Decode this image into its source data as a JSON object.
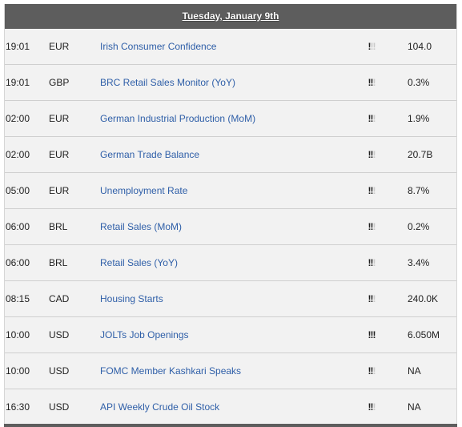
{
  "calendar": {
    "date_label": "Tuesday, January 9th",
    "events": [
      {
        "time": "19:01",
        "currency": "EUR",
        "event": "Irish Consumer Confidence",
        "importance": 1,
        "value": "104.0"
      },
      {
        "time": "19:01",
        "currency": "GBP",
        "event": "BRC Retail Sales Monitor (YoY)",
        "importance": 2,
        "value": "0.3%"
      },
      {
        "time": "02:00",
        "currency": "EUR",
        "event": "German Industrial Production (MoM)",
        "importance": 2,
        "value": "1.9%"
      },
      {
        "time": "02:00",
        "currency": "EUR",
        "event": "German Trade Balance",
        "importance": 2,
        "value": "20.7B"
      },
      {
        "time": "05:00",
        "currency": "EUR",
        "event": "Unemployment Rate",
        "importance": 2,
        "value": "8.7%"
      },
      {
        "time": "06:00",
        "currency": "BRL",
        "event": "Retail Sales (MoM)",
        "importance": 2,
        "value": "0.2%"
      },
      {
        "time": "06:00",
        "currency": "BRL",
        "event": "Retail Sales (YoY)",
        "importance": 2,
        "value": "3.4%"
      },
      {
        "time": "08:15",
        "currency": "CAD",
        "event": "Housing Starts",
        "importance": 2,
        "value": "240.0K"
      },
      {
        "time": "10:00",
        "currency": "USD",
        "event": "JOLTs Job Openings",
        "importance": 3,
        "value": "6.050M"
      },
      {
        "time": "10:00",
        "currency": "USD",
        "event": "FOMC Member Kashkari Speaks",
        "importance": 2,
        "value": "NA"
      },
      {
        "time": "16:30",
        "currency": "USD",
        "event": "API Weekly Crude Oil Stock",
        "importance": 2,
        "value": "NA"
      }
    ]
  }
}
